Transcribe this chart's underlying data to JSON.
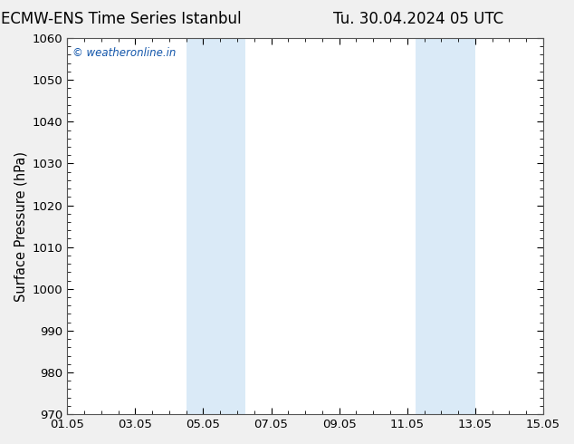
{
  "title_left": "ECMW-ENS Time Series Istanbul",
  "title_right": "Tu. 30.04.2024 05 UTC",
  "ylabel": "Surface Pressure (hPa)",
  "ylim": [
    970,
    1060
  ],
  "yticks": [
    970,
    980,
    990,
    1000,
    1010,
    1020,
    1030,
    1040,
    1050,
    1060
  ],
  "xtick_labels": [
    "01.05",
    "03.05",
    "05.05",
    "07.05",
    "09.05",
    "11.05",
    "13.05",
    "15.05"
  ],
  "xtick_positions": [
    0,
    2,
    4,
    6,
    8,
    10,
    12,
    14
  ],
  "xlim": [
    0,
    14
  ],
  "shaded_bands": [
    {
      "x_start": 3.5,
      "x_end": 5.25
    },
    {
      "x_start": 10.25,
      "x_end": 12.0
    }
  ],
  "shade_color": "#daeaf7",
  "background_color": "#f0f0f0",
  "plot_bg_color": "#ffffff",
  "watermark_text": "© weatheronline.in",
  "watermark_color": "#1155aa",
  "title_fontsize": 12,
  "tick_fontsize": 9.5,
  "ylabel_fontsize": 10.5,
  "minor_tick_interval": 0.5
}
